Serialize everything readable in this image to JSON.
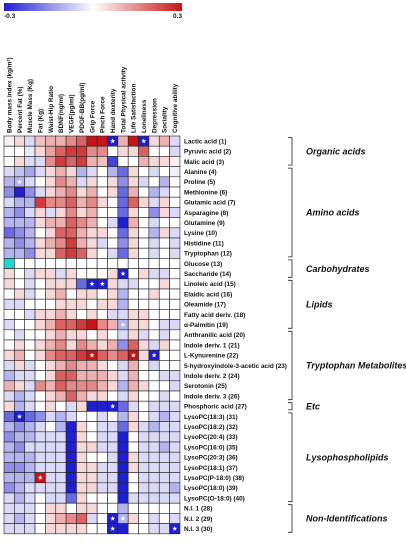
{
  "chart_data": {
    "type": "heatmap",
    "colorbar": {
      "min": -0.3,
      "max": 0.3,
      "min_label": "-0.3",
      "max_label": "0.3",
      "low_color": "#1f1fd0",
      "mid_color": "#ffffff",
      "high_color": "#c81414"
    },
    "columns": [
      "Body mass index (kg/m²)",
      "Percent Fat (%)",
      "Muscle Mass (Kg)",
      "Fat (Kg)",
      "Waist-Hip Ratio",
      "BDNF(ng/ml)",
      "VEGF(pg/ml)",
      "PDGF-BB(pg/ml)",
      "Grip Force",
      "Pinch Force",
      "Hand dexterity",
      "Total Physical activity",
      "Life Satisfaction",
      "Loneliness",
      "Depression",
      "Sociality",
      "Cognitive ability"
    ],
    "rows": [
      "Lactic acid (1)",
      "Pyruvic acid (2)",
      "Malic acid (3)",
      "Alanine (4)",
      "Proline (5)",
      "Methionine (6)",
      "Glutamic acid (7)",
      "Asparagine (8)",
      "Glutamine (9)",
      "Lysine (10)",
      "Histidine (11)",
      "Tryptophan (12)",
      "Glucose (13)",
      "Saccharide (14)",
      "Linoleic acid (15)",
      "Elaidic acid (16)",
      "Oleamide (17)",
      "Fatty acid deriv. (18)",
      "α-Palmitin (19)",
      "Anthranilic acid (20)",
      "Indole deriv. 1  (21)",
      "L-Kynurenine (22)",
      "5-hydroxyindole-3-acetic acid (23)",
      "Indole deriv. 2 (24)",
      "Serotonin (25)",
      "Indole deriv. 3 (26)",
      "Phosphoric acid (27)",
      "LysoPC(18:3) (31)",
      "LysoPC(18:2) (32)",
      "LysoPC(20:4) (33)",
      "LysoPC(16:0) (35)",
      "LysoPC(20:3) (36)",
      "LysoPC(18:1) (37)",
      "LysoPC(P-18:0) (38)",
      "LysoPC(18:0) (39)",
      "LysoPC(O-18:0) (40)",
      "N.I. 1 (28)",
      "N.I. 2 (29)",
      "N.I. 3 (30)"
    ],
    "groups": [
      {
        "label": "Organic acids",
        "start": 0,
        "end": 2
      },
      {
        "label": "Amino acids",
        "start": 3,
        "end": 11
      },
      {
        "label": "Carbohydrates",
        "start": 12,
        "end": 13
      },
      {
        "label": "Lipids",
        "start": 14,
        "end": 18
      },
      {
        "label": "Tryptophan Metabolites",
        "start": 19,
        "end": 25
      },
      {
        "label": "Etc",
        "start": 26,
        "end": 26
      },
      {
        "label": "Lysophospholipids",
        "start": 27,
        "end": 35
      },
      {
        "label": "Non-Identifications",
        "start": 36,
        "end": 38
      }
    ],
    "values": [
      [
        0.02,
        0.05,
        -0.05,
        0.08,
        0.1,
        0.1,
        0.15,
        0.2,
        0.3,
        0.3,
        -0.3,
        0.1,
        0.3,
        -0.3,
        0.05,
        0.1,
        -0.05
      ],
      [
        0.0,
        0.0,
        -0.03,
        0.05,
        0.12,
        0.2,
        0.25,
        0.25,
        0.15,
        0.15,
        0.0,
        0.05,
        0.05,
        0.2,
        0.0,
        0.0,
        -0.05
      ],
      [
        0.0,
        0.05,
        -0.05,
        -0.05,
        0.15,
        0.25,
        0.2,
        0.25,
        0.1,
        0.08,
        -0.25,
        0.0,
        0.0,
        0.1,
        0.05,
        0.05,
        0.02
      ],
      [
        -0.05,
        -0.08,
        -0.12,
        -0.05,
        0.05,
        0.1,
        0.05,
        -0.1,
        -0.05,
        0.0,
        -0.1,
        -0.2,
        0.05,
        0.0,
        -0.05,
        0.0,
        -0.02
      ],
      [
        -0.1,
        -0.1,
        -0.05,
        0.0,
        0.05,
        0.15,
        0.1,
        -0.05,
        0.05,
        0.0,
        0.05,
        -0.15,
        0.05,
        -0.05,
        0.0,
        -0.1,
        0.0
      ],
      [
        -0.15,
        -0.3,
        -0.15,
        -0.05,
        0.05,
        0.1,
        0.15,
        0.05,
        0.1,
        0.0,
        0.05,
        -0.2,
        0.1,
        0.0,
        -0.1,
        -0.05,
        0.0
      ],
      [
        -0.05,
        -0.1,
        -0.1,
        0.25,
        0.15,
        0.15,
        0.2,
        0.1,
        0.15,
        0.05,
        0.0,
        -0.2,
        0.2,
        0.05,
        -0.05,
        0.05,
        0.0
      ],
      [
        -0.1,
        -0.15,
        -0.05,
        0.05,
        -0.05,
        0.05,
        0.15,
        0.05,
        0.1,
        0.0,
        0.0,
        -0.2,
        0.05,
        0.0,
        -0.15,
        0.05,
        -0.05
      ],
      [
        -0.1,
        -0.1,
        -0.1,
        0.05,
        0.1,
        0.1,
        0.2,
        0.15,
        0.1,
        0.0,
        -0.05,
        -0.3,
        0.1,
        0.0,
        -0.05,
        0.0,
        0.0
      ],
      [
        -0.2,
        -0.15,
        -0.1,
        0.0,
        0.05,
        0.2,
        0.2,
        0.1,
        0.05,
        0.05,
        0.0,
        -0.2,
        0.05,
        0.0,
        -0.1,
        0.05,
        -0.05
      ],
      [
        -0.1,
        -0.15,
        -0.1,
        0.05,
        0.1,
        0.15,
        0.25,
        0.1,
        0.05,
        -0.05,
        0.0,
        -0.15,
        0.05,
        0.0,
        -0.05,
        0.0,
        -0.05
      ],
      [
        -0.1,
        -0.1,
        -0.15,
        0.05,
        0.05,
        0.2,
        0.25,
        0.2,
        0.05,
        0.0,
        -0.05,
        -0.2,
        0.05,
        0.0,
        -0.05,
        0.0,
        -0.05
      ],
      [
        0.0,
        0.0,
        0.0,
        0.0,
        0.0,
        0.0,
        0.0,
        0.0,
        0.0,
        0.0,
        0.0,
        0.0,
        0.0,
        0.0,
        0.0,
        0.0,
        0.0
      ],
      [
        0.05,
        0.0,
        -0.05,
        0.05,
        0.05,
        -0.05,
        0.05,
        0.0,
        0.0,
        0.0,
        0.05,
        -0.3,
        0.0,
        0.05,
        -0.05,
        -0.05,
        0.0
      ],
      [
        0.05,
        0.0,
        -0.05,
        0.0,
        0.05,
        0.05,
        0.05,
        -0.2,
        -0.3,
        -0.3,
        0.05,
        -0.05,
        -0.05,
        0.0,
        0.0,
        0.05,
        0.0
      ],
      [
        0.0,
        0.05,
        -0.05,
        0.0,
        0.05,
        0.1,
        0.0,
        0.05,
        0.05,
        0.0,
        0.05,
        -0.1,
        0.0,
        0.0,
        0.05,
        0.0,
        0.0
      ],
      [
        -0.05,
        -0.05,
        0.0,
        0.0,
        0.0,
        0.05,
        0.05,
        0.05,
        0.0,
        0.05,
        0.05,
        -0.1,
        0.0,
        0.0,
        0.0,
        0.0,
        0.0
      ],
      [
        0.0,
        0.0,
        -0.05,
        0.05,
        0.05,
        0.1,
        0.05,
        0.0,
        0.05,
        0.0,
        -0.05,
        -0.05,
        0.05,
        0.05,
        0.0,
        0.0,
        0.0
      ],
      [
        -0.05,
        0.0,
        0.0,
        0.05,
        0.1,
        0.2,
        0.2,
        0.25,
        0.3,
        0.15,
        0.1,
        -0.1,
        0.05,
        0.05,
        0.0,
        -0.05,
        -0.05
      ],
      [
        0.0,
        -0.05,
        0.0,
        0.0,
        0.05,
        0.1,
        0.05,
        0.05,
        0.0,
        0.05,
        0.0,
        -0.05,
        0.05,
        -0.05,
        0.0,
        -0.05,
        0.0
      ],
      [
        0.0,
        0.05,
        0.0,
        0.05,
        0.1,
        0.15,
        0.05,
        0.15,
        0.1,
        0.05,
        0.1,
        -0.15,
        0.2,
        0.05,
        -0.05,
        0.05,
        0.0
      ],
      [
        0.05,
        0.1,
        0.0,
        0.05,
        0.15,
        0.2,
        0.2,
        0.25,
        0.3,
        0.2,
        0.15,
        0.2,
        0.3,
        0.05,
        -0.3,
        0.0,
        0.0
      ],
      [
        -0.05,
        0.05,
        -0.05,
        0.0,
        0.05,
        0.1,
        0.15,
        0.1,
        0.1,
        0.05,
        0.0,
        -0.05,
        0.1,
        0.0,
        -0.05,
        0.0,
        0.0
      ],
      [
        -0.1,
        -0.05,
        -0.05,
        0.0,
        0.05,
        0.2,
        0.2,
        0.1,
        0.1,
        0.1,
        0.05,
        -0.05,
        0.1,
        0.0,
        0.0,
        -0.05,
        -0.05
      ],
      [
        0.1,
        0.05,
        -0.05,
        0.15,
        0.1,
        0.2,
        0.15,
        0.15,
        0.15,
        0.1,
        0.05,
        -0.1,
        0.1,
        0.05,
        0.0,
        0.0,
        -0.05
      ],
      [
        -0.05,
        -0.1,
        -0.05,
        0.0,
        0.05,
        0.1,
        0.2,
        0.1,
        0.05,
        0.05,
        0.0,
        -0.05,
        0.05,
        0.0,
        0.0,
        -0.05,
        0.0
      ],
      [
        0.05,
        -0.1,
        -0.05,
        0.0,
        0.05,
        0.0,
        -0.05,
        0.05,
        -0.3,
        -0.3,
        -0.3,
        -0.2,
        -0.05,
        0.0,
        -0.05,
        -0.05,
        -0.05
      ],
      [
        -0.2,
        -0.3,
        -0.2,
        -0.15,
        -0.05,
        -0.1,
        -0.05,
        0.0,
        0.0,
        -0.05,
        0.0,
        -0.1,
        0.05,
        0.0,
        -0.05,
        -0.1,
        -0.05
      ],
      [
        -0.1,
        -0.15,
        -0.1,
        -0.05,
        0.0,
        -0.1,
        -0.3,
        0.05,
        0.0,
        -0.05,
        -0.05,
        -0.2,
        0.05,
        -0.05,
        -0.1,
        -0.05,
        -0.05
      ],
      [
        -0.15,
        -0.1,
        -0.1,
        -0.05,
        -0.05,
        -0.05,
        -0.3,
        0.05,
        0.0,
        -0.05,
        -0.05,
        -0.3,
        0.0,
        -0.05,
        -0.05,
        -0.05,
        -0.05
      ],
      [
        -0.1,
        -0.15,
        -0.05,
        -0.05,
        -0.05,
        -0.05,
        -0.3,
        0.05,
        0.05,
        -0.05,
        -0.05,
        -0.3,
        0.0,
        -0.05,
        -0.05,
        -0.1,
        -0.05
      ],
      [
        -0.1,
        -0.1,
        -0.1,
        -0.05,
        -0.05,
        -0.05,
        -0.3,
        0.05,
        0.0,
        0.0,
        -0.05,
        -0.3,
        0.05,
        -0.05,
        -0.05,
        -0.05,
        -0.05
      ],
      [
        -0.15,
        -0.15,
        -0.1,
        -0.05,
        -0.05,
        -0.05,
        -0.3,
        0.05,
        0.05,
        -0.05,
        -0.05,
        -0.3,
        0.05,
        -0.05,
        -0.05,
        -0.05,
        -0.05
      ],
      [
        -0.1,
        -0.1,
        -0.1,
        0.3,
        -0.05,
        -0.05,
        -0.3,
        0.05,
        0.05,
        -0.05,
        -0.05,
        -0.3,
        0.0,
        -0.05,
        -0.05,
        -0.05,
        -0.05
      ],
      [
        -0.15,
        -0.1,
        -0.05,
        -0.05,
        -0.05,
        -0.05,
        -0.3,
        0.05,
        0.05,
        -0.05,
        -0.05,
        -0.3,
        0.0,
        -0.05,
        -0.05,
        -0.05,
        -0.1
      ],
      [
        -0.05,
        -0.1,
        -0.05,
        0.0,
        -0.05,
        -0.05,
        -0.2,
        0.05,
        0.0,
        0.0,
        0.0,
        -0.3,
        -0.05,
        -0.05,
        -0.05,
        -0.05,
        -0.05
      ],
      [
        -0.05,
        -0.05,
        -0.05,
        0.0,
        0.05,
        0.05,
        0.0,
        0.05,
        0.05,
        0.0,
        0.0,
        -0.1,
        0.0,
        0.0,
        0.0,
        0.0,
        0.0
      ],
      [
        -0.05,
        -0.1,
        -0.05,
        0.0,
        0.05,
        0.1,
        0.15,
        0.2,
        -0.05,
        0.0,
        -0.3,
        -0.1,
        0.05,
        0.0,
        -0.05,
        0.0,
        -0.05
      ],
      [
        -0.05,
        -0.05,
        -0.05,
        0.0,
        0.05,
        0.05,
        0.05,
        0.05,
        0.0,
        0.0,
        -0.3,
        -0.3,
        0.0,
        0.0,
        -0.05,
        -0.05,
        -0.3
      ]
    ],
    "significant": [
      [
        0,
        10
      ],
      [
        0,
        13
      ],
      [
        4,
        1
      ],
      [
        13,
        11
      ],
      [
        14,
        8
      ],
      [
        14,
        9
      ],
      [
        18,
        11
      ],
      [
        21,
        8
      ],
      [
        21,
        12
      ],
      [
        21,
        14
      ],
      [
        26,
        10
      ],
      [
        27,
        1
      ],
      [
        33,
        3
      ],
      [
        37,
        10
      ],
      [
        37,
        11
      ],
      [
        38,
        10
      ],
      [
        38,
        16
      ]
    ]
  }
}
